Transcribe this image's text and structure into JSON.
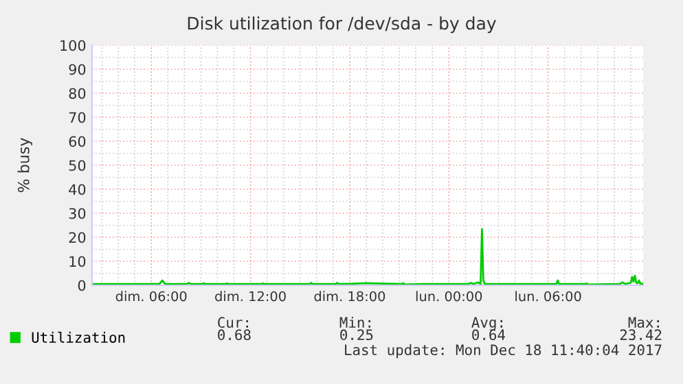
{
  "chart_data": {
    "type": "line",
    "title": "Disk utilization for /dev/sda - by day",
    "ylabel": "% busy",
    "xlim": [
      "2017-12-17T02:25",
      "2017-12-18T11:45"
    ],
    "xticks": [
      {
        "value": "2017-12-17T06:00",
        "label": "dim. 06:00"
      },
      {
        "value": "2017-12-17T12:00",
        "label": "dim. 12:00"
      },
      {
        "value": "2017-12-17T18:00",
        "label": "dim. 18:00"
      },
      {
        "value": "2017-12-18T00:00",
        "label": "lun. 00:00"
      },
      {
        "value": "2017-12-18T06:00",
        "label": "lun. 06:00"
      }
    ],
    "ylim": [
      0,
      100
    ],
    "yticks": [
      0,
      10,
      20,
      30,
      40,
      50,
      60,
      70,
      80,
      90,
      100
    ],
    "grid": true,
    "legend": "bottom left",
    "marker": "none",
    "line_style": "solid",
    "series": [
      {
        "name": "Utilization",
        "color": "#00cc00",
        "x": [
          "2017-12-17T02:25",
          "2017-12-17T06:00",
          "2017-12-17T06:30",
          "2017-12-17T06:40",
          "2017-12-17T06:50",
          "2017-12-17T08:10",
          "2017-12-17T08:15",
          "2017-12-17T08:25",
          "2017-12-17T09:05",
          "2017-12-17T09:10",
          "2017-12-17T09:15",
          "2017-12-17T10:30",
          "2017-12-17T10:35",
          "2017-12-17T10:40",
          "2017-12-17T12:40",
          "2017-12-17T12:45",
          "2017-12-17T12:50",
          "2017-12-17T15:35",
          "2017-12-17T15:40",
          "2017-12-17T15:45",
          "2017-12-17T17:10",
          "2017-12-17T17:15",
          "2017-12-17T17:20",
          "2017-12-17T18:05",
          "2017-12-17T18:55",
          "2017-12-17T19:20",
          "2017-12-17T21:10",
          "2017-12-17T21:15",
          "2017-12-17T21:20",
          "2017-12-17T22:30",
          "2017-12-18T01:10",
          "2017-12-18T01:20",
          "2017-12-18T01:30",
          "2017-12-18T01:45",
          "2017-12-18T01:55",
          "2017-12-18T02:00",
          "2017-12-18T02:05",
          "2017-12-18T02:10",
          "2017-12-18T04:30",
          "2017-12-18T06:30",
          "2017-12-18T06:35",
          "2017-12-18T06:40",
          "2017-12-18T08:15",
          "2017-12-18T08:20",
          "2017-12-18T08:25",
          "2017-12-18T10:20",
          "2017-12-18T10:30",
          "2017-12-18T10:40",
          "2017-12-18T11:00",
          "2017-12-18T11:05",
          "2017-12-18T11:10",
          "2017-12-18T11:15",
          "2017-12-18T11:20",
          "2017-12-18T11:25",
          "2017-12-18T11:30",
          "2017-12-18T11:35",
          "2017-12-18T11:45"
        ],
        "values": [
          0.5,
          0.5,
          0.6,
          2.0,
          0.6,
          0.5,
          1.0,
          0.5,
          0.5,
          0.9,
          0.5,
          0.5,
          0.8,
          0.5,
          0.5,
          0.8,
          0.5,
          0.5,
          1.0,
          0.5,
          0.6,
          1.0,
          0.5,
          0.6,
          0.9,
          0.8,
          0.5,
          0.9,
          0.3,
          0.5,
          0.5,
          1.0,
          0.5,
          1.2,
          0.6,
          23.4,
          2.0,
          0.6,
          0.5,
          0.5,
          2.0,
          0.5,
          0.5,
          0.8,
          0.3,
          0.5,
          1.2,
          0.6,
          1.0,
          3.5,
          1.5,
          4.0,
          1.0,
          0.8,
          2.0,
          0.6,
          0.7
        ]
      }
    ],
    "annotations": [
      "Cur:",
      "Min:",
      "Avg:",
      "Max:",
      "0.68",
      "0.25",
      "0.64",
      "23.42",
      "Last update: Mon Dec 18 11:40:04 2017"
    ]
  }
}
